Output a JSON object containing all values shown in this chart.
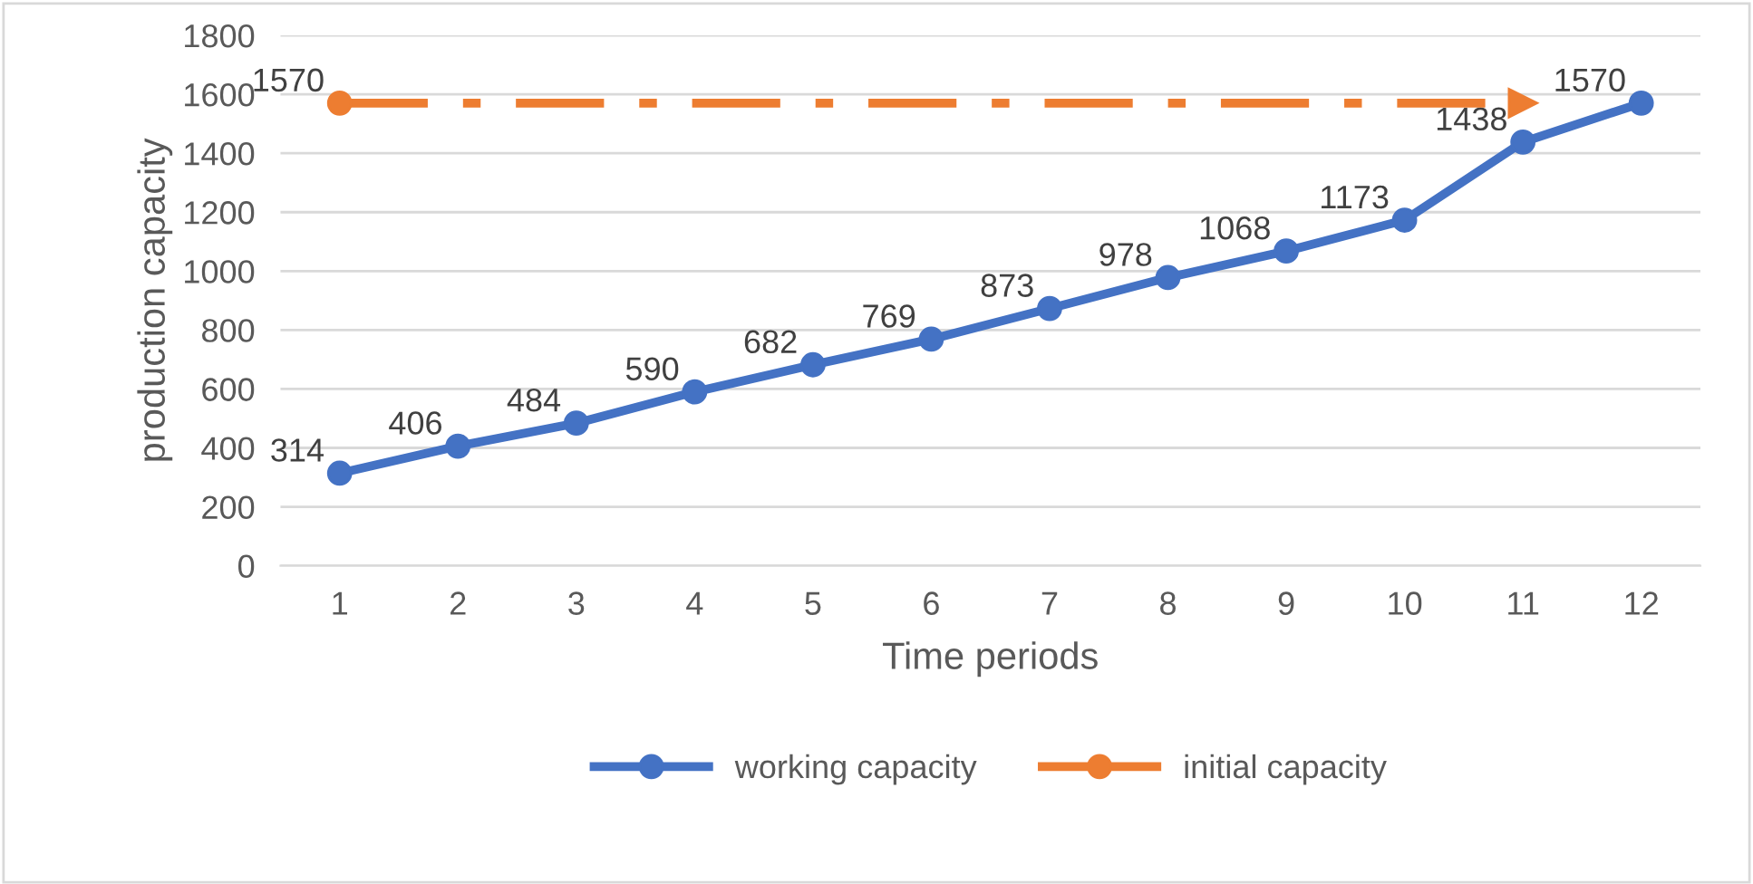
{
  "chart_data": {
    "type": "line",
    "xlabel": "Time periods",
    "ylabel": "production capacity",
    "categories": [
      "1",
      "2",
      "3",
      "4",
      "5",
      "6",
      "7",
      "8",
      "9",
      "10",
      "11",
      "12"
    ],
    "series": [
      {
        "name": "working capacity",
        "color": "#4472c4",
        "marker": "circle",
        "line_style": "solid",
        "values": [
          314,
          406,
          484,
          590,
          682,
          769,
          873,
          978,
          1068,
          1173,
          1438,
          1570
        ],
        "value_labels": [
          "314",
          "406",
          "484",
          "590",
          "682",
          "769",
          "873",
          "978",
          "1068",
          "1173",
          "1438",
          "1570"
        ]
      },
      {
        "name": "initial capacity",
        "color": "#ed7d31",
        "marker": "circle",
        "line_style": "dashdot",
        "x": [
          "1",
          "11"
        ],
        "values": [
          1570,
          1570
        ],
        "value_labels": [
          "1570",
          null
        ]
      }
    ],
    "ylim": [
      0,
      1800
    ],
    "yticks": [
      0,
      200,
      400,
      600,
      800,
      1000,
      1200,
      1400,
      1600,
      1800
    ],
    "grid": "y",
    "legend": "bottom"
  }
}
